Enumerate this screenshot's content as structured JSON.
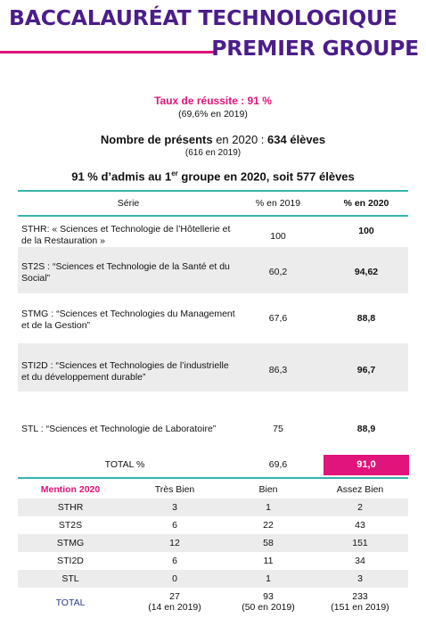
{
  "header": {
    "line1": "BACCALAURÉAT TECHNOLOGIQUE",
    "line2": "PREMIER GROUPE",
    "accent": "#e0147a",
    "title_color": "#4b1d8a"
  },
  "summary": {
    "success_rate": "Taux de réussite : 91 %",
    "success_rate_prev": "(69,6% en 2019)",
    "present_label": "Nombre de présents",
    "present_mid": " en 2020 : ",
    "present_value": "634 élèves",
    "present_prev": "(616 en 2019)",
    "admis_a": "91 % d’admis au 1",
    "admis_sup": "er",
    "admis_b": " groupe en 2020, soit 577 élèves"
  },
  "results_table": {
    "headers": [
      "Série",
      "% en 2019",
      "% en 2020"
    ],
    "rows": [
      {
        "serie": "STHR: « Sciences et Technologie de l’Hôtellerie et de la Restauration »",
        "p2019": "100",
        "p2020": "100"
      },
      {
        "serie": "ST2S : “Sciences et Technologie de la Santé et du Social”",
        "p2019": "60,2",
        "p2020": "94,62"
      },
      {
        "serie": "STMG : “Sciences et Technologies du Management et de la Gestion”",
        "p2019": "67,6",
        "p2020": "88,8"
      },
      {
        "serie": "STI2D : “Sciences et Technologies de l’industrielle et du développement durable”",
        "p2019": "86,3",
        "p2020": "96,7"
      },
      {
        "serie": "STL : “Sciences et Technologie de Laboratoire”",
        "p2019": "75",
        "p2020": "88,9"
      }
    ],
    "total": {
      "label": "TOTAL %",
      "p2019": "69,6",
      "p2020": "91,0"
    }
  },
  "mention_table": {
    "headers": [
      "Mention 2020",
      "Très Bien",
      "Bien",
      "Assez Bien"
    ],
    "rows": [
      [
        "STHR",
        "3",
        "1",
        "2"
      ],
      [
        "ST2S",
        "6",
        "22",
        "43"
      ],
      [
        "STMG",
        "12",
        "58",
        "151"
      ],
      [
        "STI2D",
        "6",
        "11",
        "34"
      ],
      [
        "STL",
        "0",
        "1",
        "3"
      ]
    ],
    "total": {
      "label": "TOTAL",
      "tb": "27",
      "tb_prev": "(14 en 2019)",
      "b": "93",
      "b_prev": "(50 en 2019)",
      "ab": "233",
      "ab_prev": "(151 en 2019)"
    },
    "label_color": "#e0147a",
    "total_color": "#2b3a8f"
  }
}
